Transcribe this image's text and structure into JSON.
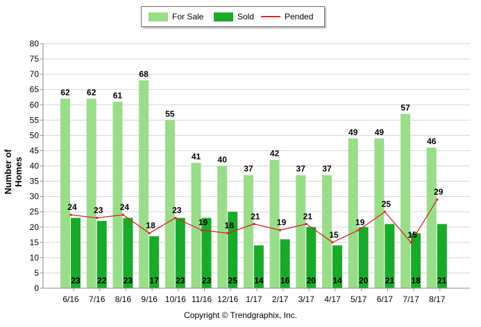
{
  "chart_data": {
    "type": "bar",
    "title": "",
    "xlabel": "",
    "ylabel": "Number of Homes",
    "ylim": [
      0,
      80
    ],
    "ytick_step": 5,
    "grid": true,
    "legend_position": "top-center",
    "categories": [
      "6/16",
      "7/16",
      "8/16",
      "9/16",
      "10/16",
      "11/16",
      "12/16",
      "1/17",
      "2/17",
      "3/17",
      "4/17",
      "5/17",
      "6/17",
      "7/17",
      "8/17"
    ],
    "series": [
      {
        "name": "For Sale",
        "kind": "bar",
        "color": "#99dd88",
        "values": [
          62,
          62,
          61,
          68,
          55,
          41,
          40,
          37,
          42,
          37,
          37,
          49,
          49,
          57,
          46
        ]
      },
      {
        "name": "Sold",
        "kind": "bar",
        "color": "#1aaa2a",
        "values": [
          23,
          22,
          23,
          17,
          23,
          23,
          25,
          14,
          16,
          20,
          14,
          20,
          21,
          18,
          21
        ]
      },
      {
        "name": "Pended",
        "kind": "line",
        "color": "#dd2222",
        "values": [
          24,
          23,
          24,
          18,
          23,
          19,
          18,
          21,
          19,
          21,
          15,
          19,
          25,
          15,
          29
        ]
      }
    ]
  },
  "footer": {
    "copyright": "Copyright © Trendgraphix, Inc."
  }
}
